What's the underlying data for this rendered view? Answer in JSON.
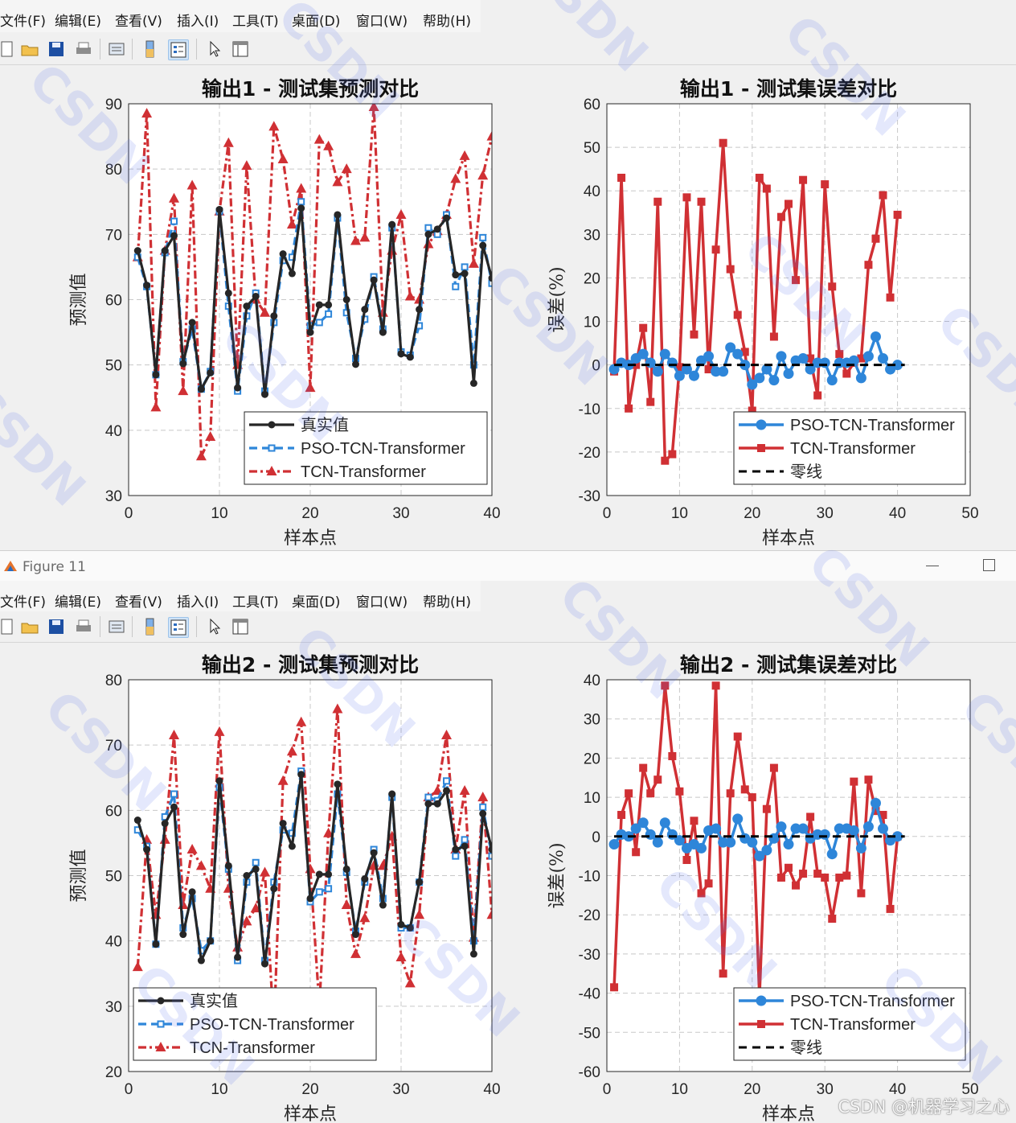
{
  "menu": {
    "items": [
      "文件(F)",
      "编辑(E)",
      "查看(V)",
      "插入(I)",
      "工具(T)",
      "桌面(D)",
      "窗口(W)",
      "帮助(H)"
    ]
  },
  "toolbar": {
    "icons": [
      "new-file-icon",
      "open-folder-icon",
      "save-icon",
      "print-icon",
      "print-preview-icon",
      "colorbar-icon",
      "legend-icon",
      "pointer-icon",
      "property-inspector-icon"
    ]
  },
  "window": {
    "title": "Figure 11"
  },
  "colors": {
    "truth": "#262626",
    "pso": "#2e86d9",
    "tcn": "#d03034",
    "zero": "#000000"
  },
  "watermark": {
    "csdn": "CSDN @机器学习之心"
  },
  "chart_data": [
    {
      "type": "line",
      "panel": "top-left",
      "title": "输出1 - 测试集预测对比",
      "xlabel": "样本点",
      "ylabel": "预测值",
      "xlim": [
        0,
        40
      ],
      "ylim": [
        30,
        90
      ],
      "xticks": [
        0,
        10,
        20,
        30,
        40
      ],
      "yticks": [
        30,
        40,
        50,
        60,
        70,
        80,
        90
      ],
      "grid": true,
      "legend_position": "bottom-right",
      "x": [
        1,
        2,
        3,
        4,
        5,
        6,
        7,
        8,
        9,
        10,
        11,
        12,
        13,
        14,
        15,
        16,
        17,
        18,
        19,
        20,
        21,
        22,
        23,
        24,
        25,
        26,
        27,
        28,
        29,
        30,
        31,
        32,
        33,
        34,
        35,
        36,
        37,
        38,
        39,
        40
      ],
      "series": [
        {
          "name": "真实值",
          "style": "truth",
          "values": [
            67.5,
            62.2,
            48.5,
            67.5,
            69.8,
            50.2,
            56.5,
            46.3,
            48.8,
            73.8,
            61.0,
            46.5,
            59.0,
            60.5,
            45.5,
            57.5,
            67.0,
            64.0,
            74.0,
            55.0,
            59.2,
            59.2,
            73.0,
            60.0,
            50.1,
            58.5,
            63.0,
            55.0,
            71.5,
            51.7,
            51.2,
            58.5,
            70.0,
            70.8,
            72.5,
            63.8,
            64.0,
            47.2,
            68.3,
            63.3
          ]
        },
        {
          "name": "PSO-TCN-Transformer",
          "style": "pso",
          "values": [
            66.5,
            62.0,
            48.5,
            67.2,
            72.0,
            50.5,
            55.5,
            46.3,
            49.0,
            73.5,
            59.0,
            46.0,
            57.5,
            61.0,
            46.0,
            56.5,
            66.0,
            66.5,
            75.0,
            56.0,
            56.5,
            57.8,
            72.5,
            58.0,
            51.0,
            57.0,
            63.5,
            55.5,
            71.0,
            52.0,
            51.5,
            56.0,
            71.0,
            70.0,
            73.0,
            62.0,
            65.0,
            50.0,
            69.5,
            62.5
          ]
        },
        {
          "name": "TCN-Transformer",
          "style": "tcn",
          "values": [
            66.5,
            88.5,
            43.5,
            67.5,
            75.5,
            46.0,
            77.5,
            36.0,
            39.0,
            73.5,
            84.0,
            50.0,
            80.5,
            60.0,
            58.0,
            86.5,
            81.5,
            71.5,
            77.0,
            46.5,
            84.5,
            83.5,
            78.0,
            80.0,
            69.0,
            69.5,
            89.5,
            58.0,
            67.5,
            73.0,
            60.5,
            60.0,
            68.5,
            70.5,
            73.0,
            78.5,
            82.0,
            65.5,
            79.0,
            85.0
          ]
        }
      ]
    },
    {
      "type": "line",
      "panel": "top-right",
      "title": "输出1 - 测试集误差对比",
      "xlabel": "样本点",
      "ylabel": "误差(%)",
      "xlim": [
        0,
        50
      ],
      "ylim": [
        -30,
        60
      ],
      "xticks": [
        0,
        10,
        20,
        30,
        40,
        50
      ],
      "yticks": [
        -30,
        -20,
        -10,
        0,
        10,
        20,
        30,
        40,
        50,
        60
      ],
      "grid": true,
      "legend_position": "bottom-right",
      "x": [
        1,
        2,
        3,
        4,
        5,
        6,
        7,
        8,
        9,
        10,
        11,
        12,
        13,
        14,
        15,
        16,
        17,
        18,
        19,
        20,
        21,
        22,
        23,
        24,
        25,
        26,
        27,
        28,
        29,
        30,
        31,
        32,
        33,
        34,
        35,
        36,
        37,
        38,
        39,
        40
      ],
      "series": [
        {
          "name": "PSO-TCN-Transformer",
          "style": "pso",
          "values": [
            -1.0,
            0.5,
            0.0,
            1.5,
            2.5,
            0.5,
            -1.5,
            2.5,
            0.5,
            -2.5,
            -1.0,
            -2.5,
            1.0,
            2.0,
            -1.5,
            -1.5,
            4.0,
            2.5,
            0.0,
            -4.5,
            -3.0,
            -1.0,
            -3.5,
            2.0,
            -2.0,
            1.0,
            1.5,
            -1.0,
            0.5,
            0.5,
            -3.5,
            0.5,
            0.5,
            1.0,
            -3.0,
            2.0,
            6.5,
            1.5,
            -1.0,
            0.0
          ]
        },
        {
          "name": "TCN-Transformer",
          "style": "tcn",
          "values": [
            -1.5,
            43.0,
            -10.0,
            0.0,
            8.5,
            -8.5,
            37.5,
            -22.0,
            -20.5,
            -0.5,
            38.5,
            7.0,
            37.5,
            -1.0,
            26.5,
            51.0,
            22.0,
            11.5,
            3.0,
            -10.5,
            43.0,
            40.5,
            6.5,
            34.0,
            37.0,
            19.5,
            42.5,
            1.5,
            -7.0,
            41.5,
            18.0,
            2.5,
            -2.0,
            0.5,
            1.5,
            23.0,
            29.0,
            39.0,
            15.5,
            34.5
          ]
        },
        {
          "name": "零线",
          "style": "zero",
          "values": [
            0,
            0
          ],
          "x": [
            1,
            41
          ]
        }
      ]
    },
    {
      "type": "line",
      "panel": "bottom-left",
      "title": "输出2 - 测试集预测对比",
      "xlabel": "样本点",
      "ylabel": "预测值",
      "xlim": [
        0,
        40
      ],
      "ylim": [
        20,
        80
      ],
      "xticks": [
        0,
        10,
        20,
        30,
        40
      ],
      "yticks": [
        20,
        30,
        40,
        50,
        60,
        70,
        80
      ],
      "grid": true,
      "legend_position": "bottom-left",
      "x": [
        1,
        2,
        3,
        4,
        5,
        6,
        7,
        8,
        9,
        10,
        11,
        12,
        13,
        14,
        15,
        16,
        17,
        18,
        19,
        20,
        21,
        22,
        23,
        24,
        25,
        26,
        27,
        28,
        29,
        30,
        31,
        32,
        33,
        34,
        35,
        36,
        37,
        38,
        39,
        40
      ],
      "series": [
        {
          "name": "真实值",
          "style": "truth",
          "values": [
            58.5,
            54.0,
            39.5,
            58.0,
            60.5,
            41.0,
            47.5,
            37.0,
            40.0,
            64.5,
            51.5,
            37.5,
            50.0,
            51.0,
            36.5,
            48.0,
            58.0,
            54.5,
            65.5,
            46.5,
            50.2,
            50.2,
            64.0,
            51.0,
            41.0,
            49.5,
            53.5,
            45.5,
            62.5,
            42.5,
            42.0,
            49.0,
            61.0,
            61.0,
            63.0,
            54.0,
            54.5,
            38.0,
            59.5,
            54.0
          ]
        },
        {
          "name": "PSO-TCN-Transformer",
          "style": "pso",
          "values": [
            57.0,
            54.5,
            39.5,
            59.0,
            62.5,
            42.0,
            46.5,
            38.5,
            40.0,
            63.5,
            51.0,
            37.0,
            49.0,
            52.0,
            37.0,
            49.0,
            57.0,
            56.5,
            66.0,
            46.0,
            47.5,
            48.0,
            62.5,
            50.5,
            41.5,
            49.0,
            54.0,
            46.5,
            62.0,
            42.0,
            42.0,
            49.0,
            62.0,
            61.5,
            64.5,
            53.0,
            55.5,
            40.0,
            60.5,
            53.0
          ]
        },
        {
          "name": "TCN-Transformer",
          "style": "tcn",
          "values": [
            36.0,
            55.5,
            44.0,
            55.5,
            71.5,
            45.5,
            54.0,
            51.5,
            48.0,
            72.0,
            48.0,
            39.0,
            43.0,
            45.0,
            50.5,
            26.5,
            64.5,
            69.0,
            73.5,
            51.0,
            30.0,
            56.5,
            75.5,
            45.5,
            38.0,
            43.5,
            51.5,
            51.5,
            56.0,
            37.5,
            33.5,
            44.0,
            62.0,
            63.0,
            71.5,
            54.0,
            63.0,
            40.5,
            62.0,
            44.0
          ]
        }
      ]
    },
    {
      "type": "line",
      "panel": "bottom-right",
      "title": "输出2 - 测试集误差对比",
      "xlabel": "样本点",
      "ylabel": "误差(%)",
      "xlim": [
        0,
        50
      ],
      "ylim": [
        -60,
        40
      ],
      "xticks": [
        0,
        10,
        20,
        30,
        40,
        50
      ],
      "yticks": [
        -60,
        -50,
        -40,
        -30,
        -20,
        -10,
        0,
        10,
        20,
        30,
        40
      ],
      "grid": true,
      "legend_position": "bottom-right",
      "x": [
        1,
        2,
        3,
        4,
        5,
        6,
        7,
        8,
        9,
        10,
        11,
        12,
        13,
        14,
        15,
        16,
        17,
        18,
        19,
        20,
        21,
        22,
        23,
        24,
        25,
        26,
        27,
        28,
        29,
        30,
        31,
        32,
        33,
        34,
        35,
        36,
        37,
        38,
        39,
        40
      ],
      "series": [
        {
          "name": "PSO-TCN-Transformer",
          "style": "pso",
          "values": [
            -2.0,
            0.5,
            0.0,
            2.0,
            3.5,
            0.5,
            -1.5,
            3.5,
            0.5,
            -1.0,
            -3.0,
            -2.0,
            -3.0,
            1.5,
            2.0,
            -1.5,
            -1.5,
            4.5,
            -0.5,
            -1.5,
            -5.0,
            -3.5,
            -0.5,
            2.5,
            -2.0,
            2.0,
            2.0,
            -0.5,
            0.5,
            0.5,
            -4.5,
            2.0,
            2.0,
            1.5,
            -3.0,
            2.5,
            8.5,
            2.0,
            -1.0,
            0.0
          ]
        },
        {
          "name": "TCN-Transformer",
          "style": "tcn",
          "values": [
            -38.5,
            5.5,
            11.0,
            -4.0,
            17.5,
            11.0,
            14.5,
            38.5,
            20.5,
            11.5,
            -6.0,
            4.0,
            -14.5,
            -12.0,
            38.5,
            -35.0,
            11.0,
            25.5,
            12.0,
            10.0,
            -41.0,
            7.0,
            17.5,
            -10.5,
            -8.0,
            -12.5,
            -9.5,
            5.0,
            -9.5,
            -10.5,
            -21.0,
            -10.5,
            -10.0,
            14.0,
            -14.5,
            14.5,
            6.5,
            5.5,
            -18.5,
            0.0
          ]
        },
        {
          "name": "零线",
          "style": "zero",
          "values": [
            0,
            0
          ],
          "x": [
            1,
            41
          ]
        }
      ]
    }
  ]
}
